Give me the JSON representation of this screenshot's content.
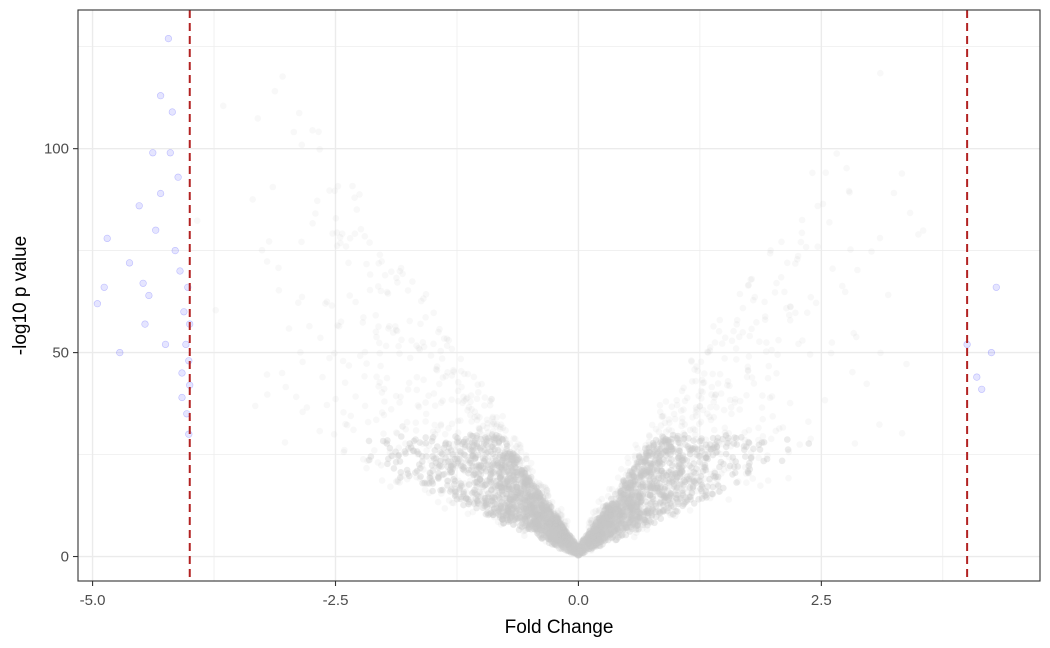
{
  "chart_data": {
    "type": "scatter",
    "title": "",
    "xlabel": "Fold Change",
    "ylabel": "-log10 p value",
    "xlim": [
      -5.15,
      4.75
    ],
    "ylim": [
      -6,
      134
    ],
    "x_ticks": [
      -5.0,
      -2.5,
      0.0,
      2.5
    ],
    "x_tick_labels": [
      "-5.0",
      "-2.5",
      "0.0",
      "2.5"
    ],
    "y_ticks": [
      0,
      50,
      100
    ],
    "y_tick_labels": [
      "0",
      "50",
      "100"
    ],
    "grid": true,
    "legend": "none",
    "threshold_lines": [
      -4,
      4
    ],
    "colors": {
      "background_points": "#c8c8c8",
      "significant_points": "#0000ff",
      "threshold_line": "#b22222",
      "grid": "#ebebeb",
      "panel_border": "#333333"
    },
    "significant_points": [
      {
        "x": -4.95,
        "y": 62
      },
      {
        "x": -4.88,
        "y": 66
      },
      {
        "x": -4.85,
        "y": 78
      },
      {
        "x": -4.72,
        "y": 50
      },
      {
        "x": -4.62,
        "y": 72
      },
      {
        "x": -4.52,
        "y": 86
      },
      {
        "x": -4.48,
        "y": 67
      },
      {
        "x": -4.46,
        "y": 57
      },
      {
        "x": -4.42,
        "y": 64
      },
      {
        "x": -4.38,
        "y": 99
      },
      {
        "x": -4.35,
        "y": 80
      },
      {
        "x": -4.3,
        "y": 113
      },
      {
        "x": -4.3,
        "y": 89
      },
      {
        "x": -4.25,
        "y": 52
      },
      {
        "x": -4.22,
        "y": 127
      },
      {
        "x": -4.2,
        "y": 99
      },
      {
        "x": -4.18,
        "y": 109
      },
      {
        "x": -4.15,
        "y": 75
      },
      {
        "x": -4.12,
        "y": 93
      },
      {
        "x": -4.1,
        "y": 70
      },
      {
        "x": -4.08,
        "y": 45
      },
      {
        "x": -4.08,
        "y": 39
      },
      {
        "x": -4.06,
        "y": 60
      },
      {
        "x": -4.04,
        "y": 52
      },
      {
        "x": -4.03,
        "y": 35
      },
      {
        "x": -4.02,
        "y": 66
      },
      {
        "x": -4.01,
        "y": 48
      },
      {
        "x": -4.01,
        "y": 30
      },
      {
        "x": -4.0,
        "y": 57
      },
      {
        "x": -4.0,
        "y": 42
      },
      {
        "x": 4.0,
        "y": 52
      },
      {
        "x": 4.1,
        "y": 44
      },
      {
        "x": 4.15,
        "y": 41
      },
      {
        "x": 4.25,
        "y": 50
      },
      {
        "x": 4.3,
        "y": 66
      }
    ]
  }
}
